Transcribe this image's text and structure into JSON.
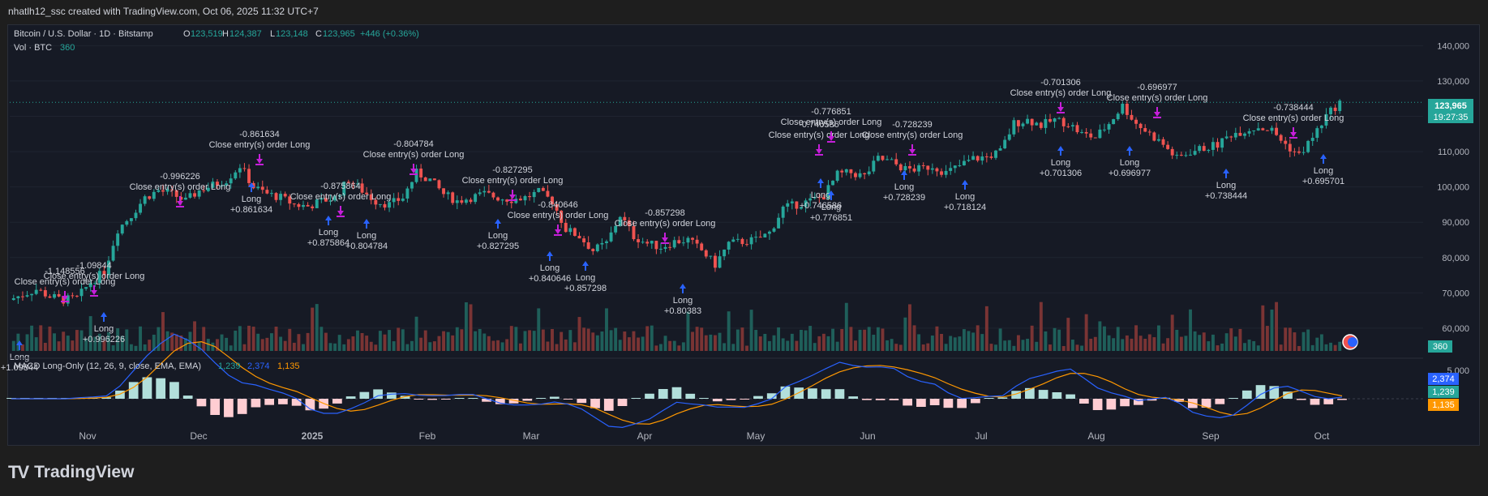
{
  "header": {
    "attribution": "nhatlh12_ssc created with TradingView.com, Oct 06, 2025 11:32 UTC+7"
  },
  "legend": {
    "symbol": "Bitcoin / U.S. Dollar · 1D · Bitstamp",
    "o_label": "O",
    "o_value": "123,519",
    "h_label": "H",
    "h_value": "124,387",
    "l_label": "L",
    "l_value": "123,148",
    "c_label": "C",
    "c_value": "123,965",
    "change": "+446 (+0.36%)",
    "vol_label": "Vol · BTC",
    "vol_value": "360",
    "macd_label": "MACD Long-Only (12, 26, 9, close, EMA, EMA)",
    "macd_v1": "1,239",
    "macd_v2": "2,374",
    "macd_v3": "1,135"
  },
  "price_badge": {
    "price": "123,965",
    "countdown": "19:27:35"
  },
  "volume_badge": "360",
  "macd_badges": [
    "2,374",
    "1,239",
    "1,135"
  ],
  "footer": {
    "logo_mark": "TV",
    "brand": "TradingView"
  },
  "colors": {
    "up": "#26a69a",
    "down": "#ef5350",
    "long": "#2962ff",
    "close": "#c51fd9",
    "macd": "#2962ff",
    "signal": "#ff9800"
  },
  "chart_data": {
    "type": "candlestick",
    "symbol": "BTCUSD",
    "interval": "1D",
    "x_ticks": [
      "Nov",
      "Dec",
      "2025",
      "Feb",
      "Mar",
      "Apr",
      "May",
      "Jun",
      "Jul",
      "Aug",
      "Sep",
      "Oct"
    ],
    "y_ticks": [
      "140,000",
      "130,000",
      "120,000",
      "110,000",
      "100,000",
      "90,000",
      "80,000",
      "70,000",
      "60,000"
    ],
    "ylim": [
      57000,
      141000
    ],
    "last_price": 123965,
    "series": [
      {
        "values": [
          68000,
          69500,
          71000,
          69000,
          68000,
          68500,
          73000,
          76000,
          88000,
          92000,
          97000,
          99000,
          98000,
          96000,
          99000,
          100500,
          102000,
          106000,
          100000,
          98000,
          97000,
          95000,
          94500,
          96000,
          97000,
          102000,
          99000,
          96000,
          95000,
          97000,
          104000,
          102000,
          98000,
          96000,
          97000,
          98000,
          97000,
          96500,
          97000,
          98500,
          96000,
          88000,
          86000,
          82000,
          84000,
          92000,
          86000,
          84000,
          83000,
          84500,
          85000,
          82000,
          78000,
          84000,
          84500,
          85000,
          87000,
          94000,
          95000,
          96000,
          97500,
          103500,
          104000,
          103000,
          108000,
          107000,
          105000,
          105000,
          106000,
          104000,
          106000,
          108000,
          108500,
          110000,
          118000,
          119000,
          117500,
          119000,
          118000,
          115000,
          114000,
          118000,
          123000,
          118000,
          115000,
          112000,
          108000,
          110000,
          111000,
          112000,
          115000,
          116000,
          117000,
          116000,
          112000,
          109000,
          114000,
          120000,
          124000
        ]
      }
    ],
    "volume_last": 360,
    "macd": {
      "value": 1239,
      "signal": 2374,
      "histogram": 1135,
      "y_tick": "5,000"
    },
    "signals": [
      {
        "type": "long",
        "label": "Long",
        "value": "+1.09844"
      },
      {
        "type": "close",
        "label": "Close entry(s) order Long",
        "value": "-1.148556"
      },
      {
        "type": "long",
        "label": "Long",
        "value": "+0.996226"
      },
      {
        "type": "close",
        "label": "Close entry(s) order Long",
        "value": "-1.09844"
      },
      {
        "type": "close",
        "label": "Close entry(s) order Long",
        "value": "-0.996226"
      },
      {
        "type": "long",
        "label": "Long",
        "value": "+0.861634"
      },
      {
        "type": "close",
        "label": "Close entry(s) order Long",
        "value": "-0.861634"
      },
      {
        "type": "long",
        "label": "Long",
        "value": "+0.875864"
      },
      {
        "type": "close",
        "label": "Close entry(s) order Long",
        "value": "-0.875864"
      },
      {
        "type": "long",
        "label": "Long",
        "value": "+0.804784"
      },
      {
        "type": "close",
        "label": "Close entry(s) order Long",
        "value": "-0.804784"
      },
      {
        "type": "long",
        "label": "Long",
        "value": "+0.827295"
      },
      {
        "type": "close",
        "label": "Close entry(s) order Long",
        "value": "-0.827295"
      },
      {
        "type": "long",
        "label": "Long",
        "value": "+0.840646"
      },
      {
        "type": "close",
        "label": "Close entry(s) order Long",
        "value": "-0.840646"
      },
      {
        "type": "long",
        "label": "Long",
        "value": "+0.857298"
      },
      {
        "type": "close",
        "label": "Close entry(s) order Long",
        "value": "-0.857298"
      },
      {
        "type": "long",
        "label": "Long",
        "value": "+0.80383"
      },
      {
        "type": "close",
        "label": "Close entry(s) order Long",
        "value": "-0.746586"
      },
      {
        "type": "close",
        "label": "Close entry(s) order Long",
        "value": "-0.776851"
      },
      {
        "type": "long",
        "label": "Long",
        "value": "+0.746586"
      },
      {
        "type": "long",
        "label": "Long",
        "value": "+0.776851"
      },
      {
        "type": "close",
        "label": "Close entry(s) order Long",
        "value": "-0.728239"
      },
      {
        "type": "long",
        "label": "Long",
        "value": "+0.728239"
      },
      {
        "type": "long",
        "label": "Long",
        "value": "+0.718124"
      },
      {
        "type": "close",
        "label": "Close entry(s) order Long",
        "value": "-0.701306"
      },
      {
        "type": "long",
        "label": "Long",
        "value": "+0.701306"
      },
      {
        "type": "close",
        "label": "Close entry(s) order Long",
        "value": "-0.696977"
      },
      {
        "type": "long",
        "label": "Long",
        "value": "+0.696977"
      },
      {
        "type": "long",
        "label": "Long",
        "value": "+0.738444"
      },
      {
        "type": "close",
        "label": "Close entry(s) order Long",
        "value": "-0.738444"
      },
      {
        "type": "long",
        "label": "Long",
        "value": "+0.695701"
      }
    ]
  }
}
